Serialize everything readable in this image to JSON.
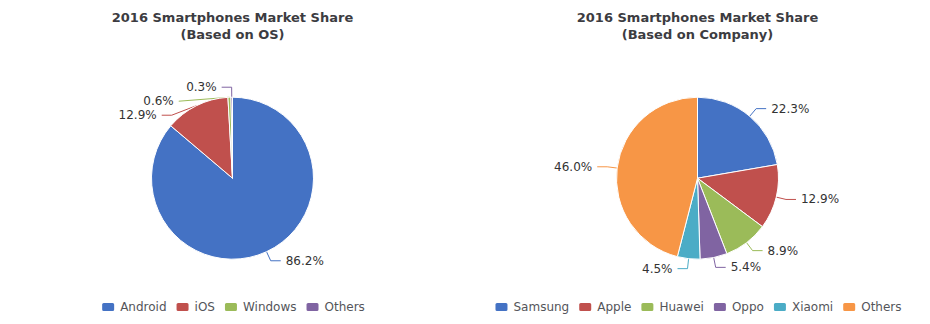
{
  "chart_data": [
    {
      "type": "pie",
      "title": "2016 Smartphones Market Share\n(Based on OS)",
      "categories": [
        "Android",
        "iOS",
        "Windows",
        "Others"
      ],
      "values": [
        86.2,
        12.9,
        0.6,
        0.3
      ],
      "value_labels": [
        "86.2%",
        "12.9%",
        "0.6%",
        "0.3%"
      ],
      "colors": [
        "#4472C4",
        "#C0504D",
        "#9BBB59",
        "#8064A2"
      ],
      "data_labels": true,
      "legend": "bottom"
    },
    {
      "type": "pie",
      "title": "2016 Smartphones Market Share\n(Based on Company)",
      "categories": [
        "Samsung",
        "Apple",
        "Huawei",
        "Oppo",
        "Xiaomi",
        "Others"
      ],
      "values": [
        22.3,
        12.9,
        8.9,
        5.4,
        4.5,
        46.0
      ],
      "value_labels": [
        "22.3%",
        "12.9%",
        "8.9%",
        "5.4%",
        "4.5%",
        "46.0%"
      ],
      "colors": [
        "#4472C4",
        "#C0504D",
        "#9BBB59",
        "#8064A2",
        "#4BACC6",
        "#F79646"
      ],
      "data_labels": true,
      "legend": "bottom"
    }
  ]
}
